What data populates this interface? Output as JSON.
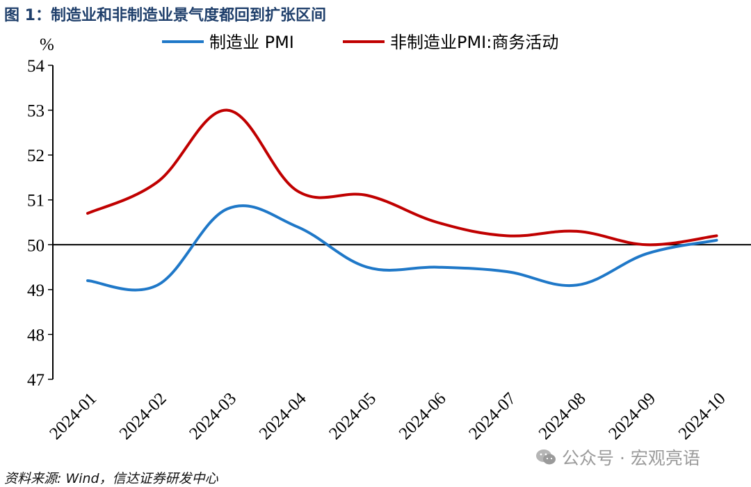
{
  "figure_title": "图 1：制造业和非制造业景气度都回到扩张区间",
  "source_note": "资料来源: Wind，信达证券研发中心",
  "watermark": "公众号 · 宏观亮语",
  "watermark_icon": "wechat-icon",
  "chart_data": {
    "type": "line",
    "y_unit": "%",
    "categories": [
      "2024-01",
      "2024-02",
      "2024-03",
      "2024-04",
      "2024-05",
      "2024-06",
      "2024-07",
      "2024-08",
      "2024-09",
      "2024-10"
    ],
    "ylim": [
      47,
      54
    ],
    "yticks": [
      47,
      48,
      49,
      50,
      51,
      52,
      53,
      54
    ],
    "reference_line": 50,
    "grid": false,
    "legend_position": "top",
    "series": [
      {
        "name": "制造业 PMI",
        "color": "#1f78c8",
        "values": [
          49.2,
          49.1,
          50.8,
          50.4,
          49.5,
          49.5,
          49.4,
          49.1,
          49.8,
          50.1
        ]
      },
      {
        "name": "非制造业PMI:商务活动",
        "color": "#c00000",
        "values": [
          50.7,
          51.4,
          53.0,
          51.2,
          51.1,
          50.5,
          50.2,
          50.3,
          50.0,
          50.2
        ]
      }
    ]
  }
}
